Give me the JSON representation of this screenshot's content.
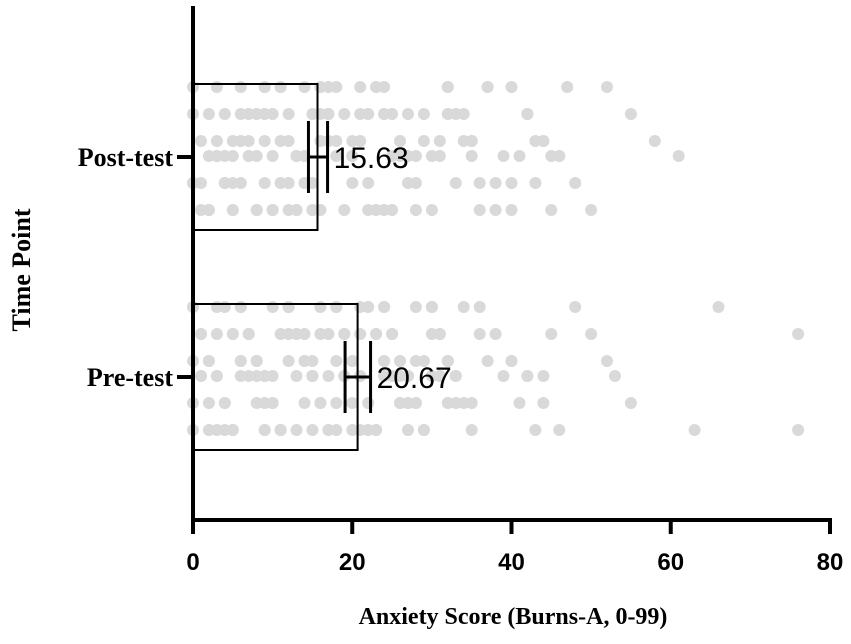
{
  "chart_data": {
    "type": "bar",
    "orientation": "horizontal",
    "xlabel": "Anxiety Score (Burns-A, 0-99)",
    "ylabel": "Time Point",
    "xlim": [
      0,
      80
    ],
    "xticks": [
      0,
      20,
      40,
      60,
      80
    ],
    "categories": [
      "Post-test",
      "Pre-test"
    ],
    "values": [
      15.63,
      20.67
    ],
    "value_labels": [
      "15.63",
      "20.67"
    ],
    "error_bars": [
      [
        14.5,
        16.9
      ],
      [
        19.1,
        22.3
      ]
    ],
    "bar_fill": "#ffffff",
    "bar_stroke": "#000000",
    "point_color": "#d9d9d9",
    "points": [
      [
        0,
        2,
        2,
        3,
        4,
        5,
        5,
        6,
        7,
        8,
        9,
        10,
        11,
        12,
        12,
        13,
        14,
        15,
        16,
        17,
        18,
        20,
        22,
        23,
        24,
        25,
        26,
        27,
        28,
        30,
        32,
        33,
        34,
        35,
        36,
        38,
        40,
        42,
        44,
        46,
        48,
        50,
        52,
        55,
        58,
        61,
        1,
        3,
        4,
        6,
        8,
        9,
        10,
        11,
        13,
        14,
        15,
        16,
        17,
        19,
        20,
        21,
        22,
        23,
        24,
        26,
        28,
        29,
        31,
        32,
        34,
        35,
        37,
        38,
        40,
        41,
        43,
        45,
        47,
        0,
        1,
        2,
        4,
        5,
        7,
        8,
        9,
        10,
        12,
        13,
        14,
        16,
        17,
        18,
        20,
        21,
        23,
        24,
        25,
        26,
        27,
        29,
        31,
        33,
        36,
        39,
        42,
        44,
        45,
        0,
        1,
        3,
        4,
        5,
        6,
        7,
        8,
        9,
        11,
        12,
        13,
        15,
        16,
        17,
        19,
        20,
        21,
        22,
        24,
        25,
        27,
        28,
        30,
        32,
        35,
        37,
        40,
        43,
        46,
        0,
        2,
        3,
        5,
        6,
        7,
        9,
        10,
        11,
        12,
        13,
        14,
        15,
        16,
        18
      ],
      [
        0,
        1,
        2,
        3,
        4,
        5,
        6,
        7,
        8,
        9,
        10,
        11,
        12,
        13,
        14,
        15,
        16,
        17,
        18,
        19,
        20,
        21,
        22,
        23,
        24,
        25,
        26,
        27,
        28,
        29,
        30,
        31,
        32,
        33,
        34,
        35,
        36,
        38,
        40,
        42,
        44,
        46,
        48,
        50,
        52,
        53,
        55,
        63,
        66,
        76,
        76,
        0,
        1,
        2,
        3,
        4,
        5,
        6,
        7,
        8,
        9,
        10,
        11,
        12,
        13,
        14,
        15,
        16,
        17,
        18,
        19,
        20,
        21,
        22,
        23,
        24,
        25,
        26,
        27,
        28,
        29,
        30,
        31,
        32,
        33,
        35,
        37,
        39,
        41,
        43,
        44,
        45,
        0,
        1,
        2,
        3,
        4,
        5,
        6,
        7,
        8,
        9,
        10,
        11,
        12,
        13,
        14,
        15,
        16,
        17,
        18,
        19,
        20,
        21,
        22,
        23,
        24,
        25,
        26,
        27,
        28,
        30,
        32,
        34,
        36,
        40,
        42,
        0,
        2,
        3,
        5,
        6,
        8,
        9,
        11,
        12,
        14,
        15,
        17,
        18,
        20,
        21,
        23,
        24,
        26,
        27,
        29,
        31,
        33,
        0,
        1,
        3,
        4,
        6,
        7,
        9,
        10,
        12,
        13,
        15,
        16,
        18,
        19,
        21,
        22,
        24,
        26,
        28,
        30,
        32
      ]
    ]
  }
}
